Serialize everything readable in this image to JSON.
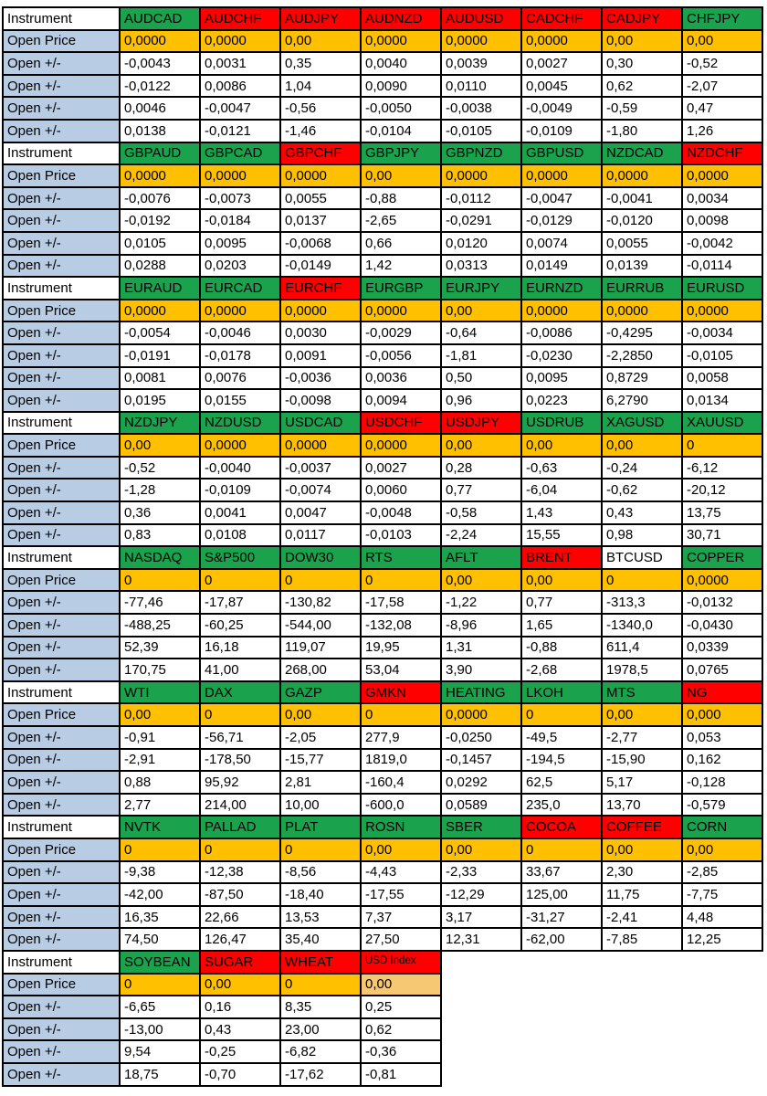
{
  "colors": {
    "header_green": "#1aa24d",
    "header_red": "#ff0000",
    "header_white": "#ffffff",
    "open_price_orange": "#ffc000",
    "open_price_light_orange": "#f7c873",
    "row_label_blue": "#b8cce4",
    "grid_border": "#000000"
  },
  "table": {
    "row_labels": {
      "instrument": "Instrument",
      "open_price": "Open Price",
      "open_delta": "Open +/-"
    },
    "blocks": [
      {
        "columns": [
          {
            "name": "AUDCAD",
            "header_bg": "green",
            "open_price": "0,0000",
            "deltas": [
              "-0,0043",
              "-0,0122",
              "0,0046",
              "0,0138"
            ]
          },
          {
            "name": "AUDCHF",
            "header_bg": "red",
            "open_price": "0,0000",
            "deltas": [
              "0,0031",
              "0,0086",
              "-0,0047",
              "-0,0121"
            ]
          },
          {
            "name": "AUDJPY",
            "header_bg": "red",
            "open_price": "0,00",
            "deltas": [
              "0,35",
              "1,04",
              "-0,56",
              "-1,46"
            ]
          },
          {
            "name": "AUDNZD",
            "header_bg": "red",
            "open_price": "0,0000",
            "deltas": [
              "0,0040",
              "0,0090",
              "-0,0050",
              "-0,0104"
            ]
          },
          {
            "name": "AUDUSD",
            "header_bg": "red",
            "open_price": "0,0000",
            "deltas": [
              "0,0039",
              "0,0110",
              "-0,0038",
              "-0,0105"
            ]
          },
          {
            "name": "CADCHF",
            "header_bg": "red",
            "open_price": "0,0000",
            "deltas": [
              "0,0027",
              "0,0045",
              "-0,0049",
              "-0,0109"
            ]
          },
          {
            "name": "CADJPY",
            "header_bg": "red",
            "open_price": "0,00",
            "deltas": [
              "0,30",
              "0,62",
              "-0,59",
              "-1,80"
            ]
          },
          {
            "name": "CHFJPY",
            "header_bg": "green",
            "open_price": "0,00",
            "deltas": [
              "-0,52",
              "-2,07",
              "0,47",
              "1,26"
            ]
          }
        ]
      },
      {
        "columns": [
          {
            "name": "GBPAUD",
            "header_bg": "green",
            "open_price": "0,0000",
            "deltas": [
              "-0,0076",
              "-0,0192",
              "0,0105",
              "0,0288"
            ]
          },
          {
            "name": "GBPCAD",
            "header_bg": "green",
            "open_price": "0,0000",
            "deltas": [
              "-0,0073",
              "-0,0184",
              "0,0095",
              "0,0203"
            ]
          },
          {
            "name": "GBPCHF",
            "header_bg": "red",
            "open_price": "0,0000",
            "deltas": [
              "0,0055",
              "0,0137",
              "-0,0068",
              "-0,0149"
            ]
          },
          {
            "name": "GBPJPY",
            "header_bg": "green",
            "open_price": "0,00",
            "deltas": [
              "-0,88",
              "-2,65",
              "0,66",
              "1,42"
            ]
          },
          {
            "name": "GBPNZD",
            "header_bg": "green",
            "open_price": "0,0000",
            "deltas": [
              "-0,0112",
              "-0,0291",
              "0,0120",
              "0,0313"
            ]
          },
          {
            "name": "GBPUSD",
            "header_bg": "green",
            "open_price": "0,0000",
            "deltas": [
              "-0,0047",
              "-0,0129",
              "0,0074",
              "0,0149"
            ]
          },
          {
            "name": "NZDCAD",
            "header_bg": "green",
            "open_price": "0,0000",
            "deltas": [
              "-0,0041",
              "-0,0120",
              "0,0055",
              "0,0139"
            ]
          },
          {
            "name": "NZDCHF",
            "header_bg": "red",
            "open_price": "0,0000",
            "deltas": [
              "0,0034",
              "0,0098",
              "-0,0042",
              "-0,0114"
            ]
          }
        ]
      },
      {
        "columns": [
          {
            "name": "EURAUD",
            "header_bg": "green",
            "open_price": "0,0000",
            "deltas": [
              "-0,0054",
              "-0,0191",
              "0,0081",
              "0,0195"
            ]
          },
          {
            "name": "EURCAD",
            "header_bg": "green",
            "open_price": "0,0000",
            "deltas": [
              "-0,0046",
              "-0,0178",
              "0,0076",
              "0,0155"
            ]
          },
          {
            "name": "EURCHF",
            "header_bg": "red",
            "open_price": "0,0000",
            "deltas": [
              "0,0030",
              "0,0091",
              "-0,0036",
              "-0,0098"
            ]
          },
          {
            "name": "EURGBP",
            "header_bg": "green",
            "open_price": "0,0000",
            "deltas": [
              "-0,0029",
              "-0,0056",
              "0,0036",
              "0,0094"
            ]
          },
          {
            "name": "EURJPY",
            "header_bg": "green",
            "open_price": "0,00",
            "deltas": [
              "-0,64",
              "-1,81",
              "0,50",
              "0,96"
            ]
          },
          {
            "name": "EURNZD",
            "header_bg": "green",
            "open_price": "0,0000",
            "deltas": [
              "-0,0086",
              "-0,0230",
              "0,0095",
              "0,0223"
            ]
          },
          {
            "name": "EURRUB",
            "header_bg": "green",
            "open_price": "0,0000",
            "deltas": [
              "-0,4295",
              "-2,2850",
              "0,8729",
              "6,2790"
            ]
          },
          {
            "name": "EURUSD",
            "header_bg": "green",
            "open_price": "0,0000",
            "deltas": [
              "-0,0034",
              "-0,0105",
              "0,0058",
              "0,0134"
            ]
          }
        ]
      },
      {
        "columns": [
          {
            "name": "NZDJPY",
            "header_bg": "green",
            "open_price": "0,00",
            "deltas": [
              "-0,52",
              "-1,28",
              "0,36",
              "0,83"
            ]
          },
          {
            "name": "NZDUSD",
            "header_bg": "green",
            "open_price": "0,0000",
            "deltas": [
              "-0,0040",
              "-0,0109",
              "0,0041",
              "0,0108"
            ]
          },
          {
            "name": "USDCAD",
            "header_bg": "green",
            "open_price": "0,0000",
            "deltas": [
              "-0,0037",
              "-0,0074",
              "0,0047",
              "0,0117"
            ]
          },
          {
            "name": "USDCHF",
            "header_bg": "red",
            "open_price": "0,0000",
            "deltas": [
              "0,0027",
              "0,0060",
              "-0,0048",
              "-0,0103"
            ]
          },
          {
            "name": "USDJPY",
            "header_bg": "red",
            "open_price": "0,00",
            "deltas": [
              "0,28",
              "0,77",
              "-0,58",
              "-2,24"
            ]
          },
          {
            "name": "USDRUB",
            "header_bg": "green",
            "open_price": "0,00",
            "deltas": [
              "-0,63",
              "-6,04",
              "1,43",
              "15,55"
            ]
          },
          {
            "name": "XAGUSD",
            "header_bg": "green",
            "open_price": "0,00",
            "deltas": [
              "-0,24",
              "-0,62",
              "0,43",
              "0,98"
            ]
          },
          {
            "name": "XAUUSD",
            "header_bg": "green",
            "open_price": "0",
            "deltas": [
              "-6,12",
              "-20,12",
              "13,75",
              "30,71"
            ]
          }
        ]
      },
      {
        "columns": [
          {
            "name": "NASDAQ",
            "header_bg": "green",
            "open_price": "0",
            "deltas": [
              "-77,46",
              "-488,25",
              "52,39",
              "170,75"
            ]
          },
          {
            "name": "S&P500",
            "header_bg": "green",
            "open_price": "0",
            "deltas": [
              "-17,87",
              "-60,25",
              "16,18",
              "41,00"
            ]
          },
          {
            "name": "DOW30",
            "header_bg": "green",
            "open_price": "0",
            "deltas": [
              "-130,82",
              "-544,00",
              "119,07",
              "268,00"
            ]
          },
          {
            "name": "RTS",
            "header_bg": "green",
            "open_price": "0",
            "deltas": [
              "-17,58",
              "-132,08",
              "19,95",
              "53,04"
            ]
          },
          {
            "name": "AFLT",
            "header_bg": "green",
            "open_price": "0,00",
            "deltas": [
              "-1,22",
              "-8,96",
              "1,31",
              "3,90"
            ]
          },
          {
            "name": "BRENT",
            "header_bg": "red",
            "open_price": "0,00",
            "deltas": [
              "0,77",
              "1,65",
              "-0,88",
              "-2,68"
            ]
          },
          {
            "name": "BTCUSD",
            "header_bg": "white",
            "open_price": "0",
            "deltas": [
              "-313,3",
              "-1340,0",
              "611,4",
              "1978,5"
            ]
          },
          {
            "name": "COPPER",
            "header_bg": "green",
            "open_price": "0,0000",
            "deltas": [
              "-0,0132",
              "-0,0430",
              "0,0339",
              "0,0765"
            ]
          }
        ]
      },
      {
        "columns": [
          {
            "name": "WTI",
            "header_bg": "green",
            "open_price": "0,00",
            "deltas": [
              "-0,91",
              "-2,91",
              "0,88",
              "2,77"
            ]
          },
          {
            "name": "DAX",
            "header_bg": "green",
            "open_price": "0",
            "deltas": [
              "-56,71",
              "-178,50",
              "95,92",
              "214,00"
            ]
          },
          {
            "name": "GAZP",
            "header_bg": "green",
            "open_price": "0,00",
            "deltas": [
              "-2,05",
              "-15,77",
              "2,81",
              "10,00"
            ]
          },
          {
            "name": "GMKN",
            "header_bg": "red",
            "open_price": "0",
            "deltas": [
              "277,9",
              "1819,0",
              "-160,4",
              "-600,0"
            ]
          },
          {
            "name": "HEATING",
            "header_bg": "green",
            "open_price": "0,0000",
            "deltas": [
              "-0,0250",
              "-0,1457",
              "0,0292",
              "0,0589"
            ]
          },
          {
            "name": "LKOH",
            "header_bg": "green",
            "open_price": "0",
            "deltas": [
              "-49,5",
              "-194,5",
              "62,5",
              "235,0"
            ]
          },
          {
            "name": "MTS",
            "header_bg": "green",
            "open_price": "0,00",
            "deltas": [
              "-2,77",
              "-15,90",
              "5,17",
              "13,70"
            ]
          },
          {
            "name": "NG",
            "header_bg": "red",
            "open_price": "0,000",
            "deltas": [
              "0,053",
              "0,162",
              "-0,128",
              "-0,579"
            ]
          }
        ]
      },
      {
        "columns": [
          {
            "name": "NVTK",
            "header_bg": "green",
            "open_price": "0",
            "deltas": [
              "-9,38",
              "-42,00",
              "16,35",
              "74,50"
            ]
          },
          {
            "name": "PALLAD",
            "header_bg": "green",
            "open_price": "0",
            "deltas": [
              "-12,38",
              "-87,50",
              "22,66",
              "126,47"
            ]
          },
          {
            "name": "PLAT",
            "header_bg": "green",
            "open_price": "0",
            "deltas": [
              "-8,56",
              "-18,40",
              "13,53",
              "35,40"
            ]
          },
          {
            "name": "ROSN",
            "header_bg": "green",
            "open_price": "0,00",
            "deltas": [
              "-4,43",
              "-17,55",
              "7,37",
              "27,50"
            ]
          },
          {
            "name": "SBER",
            "header_bg": "green",
            "open_price": "0,00",
            "deltas": [
              "-2,33",
              "-12,29",
              "3,17",
              "12,31"
            ]
          },
          {
            "name": "COCOA",
            "header_bg": "red",
            "open_price": "0",
            "deltas": [
              "33,67",
              "125,00",
              "-31,27",
              "-62,00"
            ]
          },
          {
            "name": "COFFEE",
            "header_bg": "red",
            "open_price": "0,00",
            "deltas": [
              "2,30",
              "11,75",
              "-2,41",
              "-7,85"
            ]
          },
          {
            "name": "CORN",
            "header_bg": "green",
            "open_price": "0,00",
            "deltas": [
              "-2,85",
              "-7,75",
              "4,48",
              "12,25"
            ]
          }
        ]
      },
      {
        "columns": [
          {
            "name": "SOYBEAN",
            "header_bg": "green",
            "open_price": "0",
            "deltas": [
              "-6,65",
              "-13,00",
              "9,54",
              "18,75"
            ]
          },
          {
            "name": "SUGAR",
            "header_bg": "red",
            "open_price": "0,00",
            "deltas": [
              "0,16",
              "0,43",
              "-0,25",
              "-0,70"
            ]
          },
          {
            "name": "WHEAT",
            "header_bg": "red",
            "open_price": "0",
            "deltas": [
              "8,35",
              "23,00",
              "-6,82",
              "-17,62"
            ]
          },
          {
            "name": "USD Index",
            "header_bg": "red",
            "small_header": true,
            "open_bg": "light",
            "open_price": "0,00",
            "deltas": [
              "0,25",
              "0,62",
              "-0,36",
              "-0,81"
            ]
          }
        ]
      }
    ]
  }
}
